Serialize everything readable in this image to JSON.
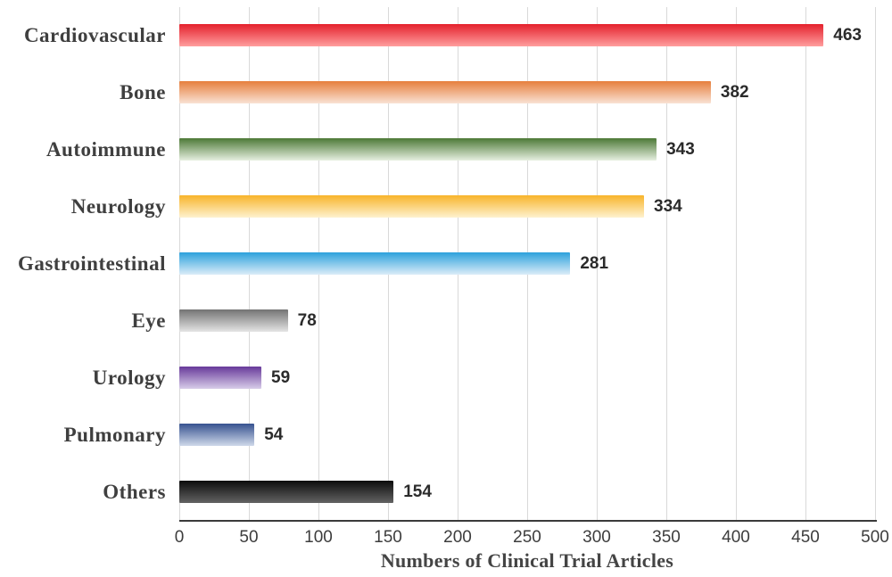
{
  "chart_data": {
    "type": "bar",
    "orientation": "horizontal",
    "title": "",
    "xlabel": "Numbers of Clinical Trial Articles",
    "ylabel": "",
    "xlim": [
      0,
      500
    ],
    "xticks": [
      0,
      50,
      100,
      150,
      200,
      250,
      300,
      350,
      400,
      450,
      500
    ],
    "grid": true,
    "grid_color": "#d9d9d9",
    "axis_color": "#3a3a3a",
    "categories": [
      "Cardiovascular",
      "Bone",
      "Autoimmune",
      "Neurology",
      "Gastrointestinal",
      "Eye",
      "Urology",
      "Pulmonary",
      "Others"
    ],
    "values": [
      463,
      382,
      343,
      334,
      281,
      78,
      59,
      54,
      154
    ],
    "data_labels": [
      "463",
      "382",
      "343",
      "334",
      "281",
      "78",
      "59",
      "54",
      "154"
    ],
    "bar_gradients": [
      {
        "top": "#e4202c",
        "bottom": "#ff9e9e"
      },
      {
        "top": "#e67f3d",
        "bottom": "#f9e2d4"
      },
      {
        "top": "#4d7937",
        "bottom": "#e6efe0"
      },
      {
        "top": "#f8b42a",
        "bottom": "#fef2cf"
      },
      {
        "top": "#2da1dc",
        "bottom": "#dcedf8"
      },
      {
        "top": "#737373",
        "bottom": "#e4e4e4"
      },
      {
        "top": "#67399a",
        "bottom": "#d8cde9"
      },
      {
        "top": "#375290",
        "bottom": "#cfd9ea"
      },
      {
        "top": "#0c0c0c",
        "bottom": "#636363"
      }
    ],
    "label_color": "#3f3f3f",
    "value_label_color": "#2b2b2b",
    "tick_label_color": "#3d3d3d"
  }
}
